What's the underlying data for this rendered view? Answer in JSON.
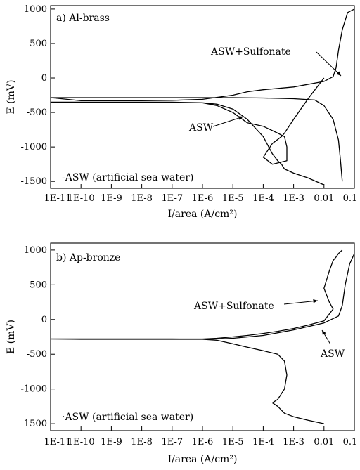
{
  "chart_data": [
    {
      "type": "line",
      "panel_label": "a) Al-brass",
      "xlabel": "I/area (A/cm²)",
      "ylabel": "E (mV)",
      "x_scale": "log",
      "xlim": [
        1e-11,
        0.1
      ],
      "ylim": [
        -1600,
        1050
      ],
      "x_ticks": [
        "1E-11",
        "1E-10",
        "1E-9",
        "1E-8",
        "1E-7",
        "1E-6",
        "1E-5",
        "1E-4",
        "1E-3",
        "0.01",
        "0.1"
      ],
      "y_ticks": [
        "1000",
        "500",
        "0",
        "-500",
        "-1000",
        "-1500"
      ],
      "note": "-ASW (artificial sea water)",
      "annotations": [
        {
          "text": "ASW+Sulfonate",
          "series": "ASW+Sulfonate"
        },
        {
          "text": "ASW",
          "series": "ASW"
        }
      ],
      "series": [
        {
          "name": "ASW+Sulfonate",
          "x": [
            0.04,
            0.035,
            0.03,
            0.02,
            0.01,
            0.005,
            0.001,
            0.0001,
            1e-05,
            1e-06,
            1e-07,
            1e-08,
            1e-09,
            1e-10,
            1e-11,
            1e-10,
            1e-09,
            1e-08,
            1e-07,
            1e-06,
            1e-05,
            3e-05,
            0.0001,
            0.001,
            0.01,
            0.02,
            0.025,
            0.03,
            0.04,
            0.06,
            0.1
          ],
          "y": [
            -1500,
            -1200,
            -900,
            -600,
            -400,
            -320,
            -300,
            -290,
            -285,
            -285,
            -285,
            -285,
            -285,
            -285,
            -285,
            -330,
            -330,
            -330,
            -325,
            -310,
            -250,
            -200,
            -170,
            -130,
            -50,
            20,
            150,
            400,
            700,
            950,
            1000
          ]
        },
        {
          "name": "ASW",
          "x": [
            0.01,
            0.003,
            0.001,
            0.0005,
            0.0004,
            0.0003,
            0.0002,
            0.0001,
            3e-05,
            1e-05,
            3e-06,
            1e-06,
            1e-07,
            1e-08,
            1e-09,
            1e-10,
            1e-11,
            1e-10,
            1e-09,
            1e-08,
            1e-07,
            1e-06,
            3e-06,
            1e-05,
            3e-05,
            0.0001,
            0.0003,
            0.0005,
            0.0006,
            0.0006,
            0.0002,
            0.0001,
            0.0002,
            0.0004,
            0.0005,
            0.001,
            0.003,
            0.01
          ],
          "y": [
            -1550,
            -1450,
            -1380,
            -1320,
            -1250,
            -1200,
            -1100,
            -850,
            -600,
            -450,
            -380,
            -360,
            -350,
            -350,
            -350,
            -350,
            -350,
            -355,
            -355,
            -355,
            -355,
            -360,
            -400,
            -500,
            -650,
            -700,
            -800,
            -850,
            -1000,
            -1200,
            -1250,
            -1150,
            -950,
            -850,
            -800,
            -600,
            -300,
            0
          ]
        }
      ]
    },
    {
      "type": "line",
      "panel_label": "b) Ap-bronze",
      "xlabel": "I/area (A/cm²)",
      "ylabel": "E (mV)",
      "x_scale": "log",
      "xlim": [
        1e-11,
        0.1
      ],
      "ylim": [
        -1600,
        1100
      ],
      "x_ticks": [
        "1E-11",
        "1E-10",
        "1E-9",
        "1E-8",
        "1E-7",
        "1E-6",
        "1E-5",
        "1E-4",
        "1E-3",
        "0.01",
        "0.1"
      ],
      "y_ticks": [
        "1000",
        "500",
        "0",
        "-500",
        "-1000",
        "-1500"
      ],
      "note": "·ASW (artificial sea water)",
      "annotations": [
        {
          "text": "ASW+Sulfonate",
          "series": "ASW+Sulfonate"
        },
        {
          "text": "ASW",
          "series": "ASW"
        }
      ],
      "series": [
        {
          "name": "ASW+Sulfonate",
          "x": [
            1e-11,
            1e-10,
            1e-09,
            1e-08,
            1e-07,
            1e-06,
            3e-06,
            1e-05,
            3e-05,
            0.0001,
            0.0003,
            0.001,
            0.003,
            0.01,
            0.02,
            0.015,
            0.01,
            0.015,
            0.02,
            0.025,
            0.03,
            0.04
          ],
          "y": [
            -280,
            -280,
            -280,
            -280,
            -280,
            -280,
            -270,
            -250,
            -230,
            -200,
            -170,
            -130,
            -80,
            -20,
            150,
            250,
            450,
            700,
            850,
            900,
            950,
            1000
          ]
        },
        {
          "name": "ASW",
          "x": [
            0.01,
            0.003,
            0.001,
            0.0005,
            0.0003,
            0.0002,
            0.0003,
            0.0005,
            0.0006,
            0.0005,
            0.0003,
            0.0001,
            3e-05,
            1e-05,
            3e-06,
            1e-06,
            1e-07,
            1e-08,
            1e-09,
            1e-10,
            1e-11,
            1e-10,
            1e-09,
            1e-08,
            1e-07,
            1e-06,
            3e-06,
            1e-05,
            0.0001,
            0.001,
            0.01,
            0.03,
            0.04,
            0.05,
            0.07,
            0.1
          ],
          "y": [
            -1500,
            -1450,
            -1400,
            -1350,
            -1250,
            -1200,
            -1150,
            -1000,
            -800,
            -600,
            -500,
            -450,
            -400,
            -350,
            -300,
            -285,
            -280,
            -280,
            -280,
            -280,
            -280,
            -285,
            -285,
            -285,
            -285,
            -285,
            -280,
            -270,
            -230,
            -150,
            -50,
            50,
            200,
            500,
            800,
            950
          ]
        }
      ]
    }
  ]
}
